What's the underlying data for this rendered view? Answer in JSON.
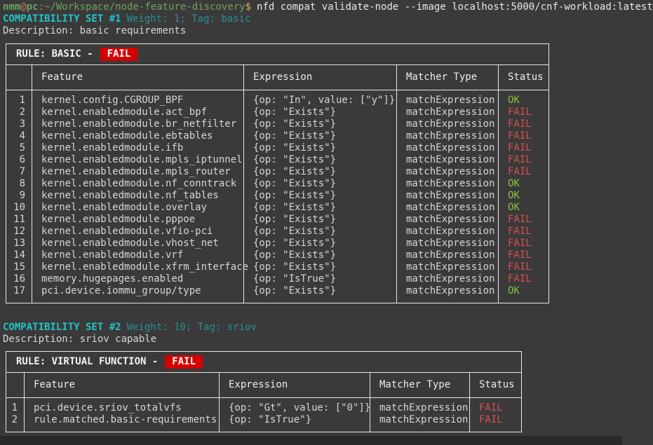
{
  "colors": {
    "background": "#3a3a3a",
    "accent_cyan": "#23c3c7",
    "dim_teal": "#2a8f92",
    "ok_green": "#8ac33e",
    "fail_red": "#da4e4e",
    "badge_red_bg": "#d40000",
    "prompt_green": "#67a266",
    "border_white": "#e6e6e6"
  },
  "prompt": {
    "user": "nmm",
    "at": "@",
    "host": "pc",
    "colon": ":",
    "path": "~/Workspace/node-feature-discovery",
    "dollar": "$",
    "command": "nfd compat validate-node --image localhost:5000/cnf-workload:latest"
  },
  "sections": [
    {
      "set_title": "COMPATIBILITY SET #1",
      "set_meta": "Weight: 1; Tag: basic",
      "description": "Description: basic requirements",
      "rule_label": "RULE: BASIC -",
      "rule_status": "FAIL",
      "columns": [
        "",
        "Feature",
        "Expression",
        "Matcher Type",
        "Status"
      ],
      "rows": [
        [
          "1",
          "kernel.config.CGROUP_BPF",
          "{op: \"In\", value: [\"y\"]}",
          "matchExpression",
          "OK"
        ],
        [
          "2",
          "kernel.enabledmodule.act_bpf",
          "{op: \"Exists\"}",
          "matchExpression",
          "FAIL"
        ],
        [
          "3",
          "kernel.enabledmodule.br_netfilter",
          "{op: \"Exists\"}",
          "matchExpression",
          "FAIL"
        ],
        [
          "4",
          "kernel.enabledmodule.ebtables",
          "{op: \"Exists\"}",
          "matchExpression",
          "FAIL"
        ],
        [
          "5",
          "kernel.enabledmodule.ifb",
          "{op: \"Exists\"}",
          "matchExpression",
          "FAIL"
        ],
        [
          "6",
          "kernel.enabledmodule.mpls_iptunnel",
          "{op: \"Exists\"}",
          "matchExpression",
          "FAIL"
        ],
        [
          "7",
          "kernel.enabledmodule.mpls_router",
          "{op: \"Exists\"}",
          "matchExpression",
          "FAIL"
        ],
        [
          "8",
          "kernel.enabledmodule.nf_conntrack",
          "{op: \"Exists\"}",
          "matchExpression",
          "OK"
        ],
        [
          "9",
          "kernel.enabledmodule.nf_tables",
          "{op: \"Exists\"}",
          "matchExpression",
          "OK"
        ],
        [
          "10",
          "kernel.enabledmodule.overlay",
          "{op: \"Exists\"}",
          "matchExpression",
          "OK"
        ],
        [
          "11",
          "kernel.enabledmodule.pppoe",
          "{op: \"Exists\"}",
          "matchExpression",
          "FAIL"
        ],
        [
          "12",
          "kernel.enabledmodule.vfio-pci",
          "{op: \"Exists\"}",
          "matchExpression",
          "FAIL"
        ],
        [
          "13",
          "kernel.enabledmodule.vhost_net",
          "{op: \"Exists\"}",
          "matchExpression",
          "FAIL"
        ],
        [
          "14",
          "kernel.enabledmodule.vrf",
          "{op: \"Exists\"}",
          "matchExpression",
          "FAIL"
        ],
        [
          "15",
          "kernel.enabledmodule.xfrm_interface",
          "{op: \"Exists\"}",
          "matchExpression",
          "FAIL"
        ],
        [
          "16",
          "memory.hugepages.enabled",
          "{op: \"IsTrue\"}",
          "matchExpression",
          "FAIL"
        ],
        [
          "17",
          "pci.device.iommu_group/type",
          "{op: \"Exists\"}",
          "matchExpression",
          "OK"
        ]
      ]
    },
    {
      "set_title": "COMPATIBILITY SET #2",
      "set_meta": "Weight: 10; Tag: sriov",
      "description": "Description: sriov capable",
      "rule_label": "RULE: VIRTUAL FUNCTION -",
      "rule_status": "FAIL",
      "columns": [
        "",
        "Feature",
        "Expression",
        "Matcher Type",
        "Status"
      ],
      "rows": [
        [
          "1",
          "pci.device.sriov_totalvfs",
          "{op: \"Gt\", value: [\"0\"]}",
          "matchExpression",
          "FAIL"
        ],
        [
          "2",
          "rule.matched.basic-requirements",
          "{op: \"IsTrue\"}",
          "matchExpression",
          "FAIL"
        ]
      ]
    }
  ]
}
